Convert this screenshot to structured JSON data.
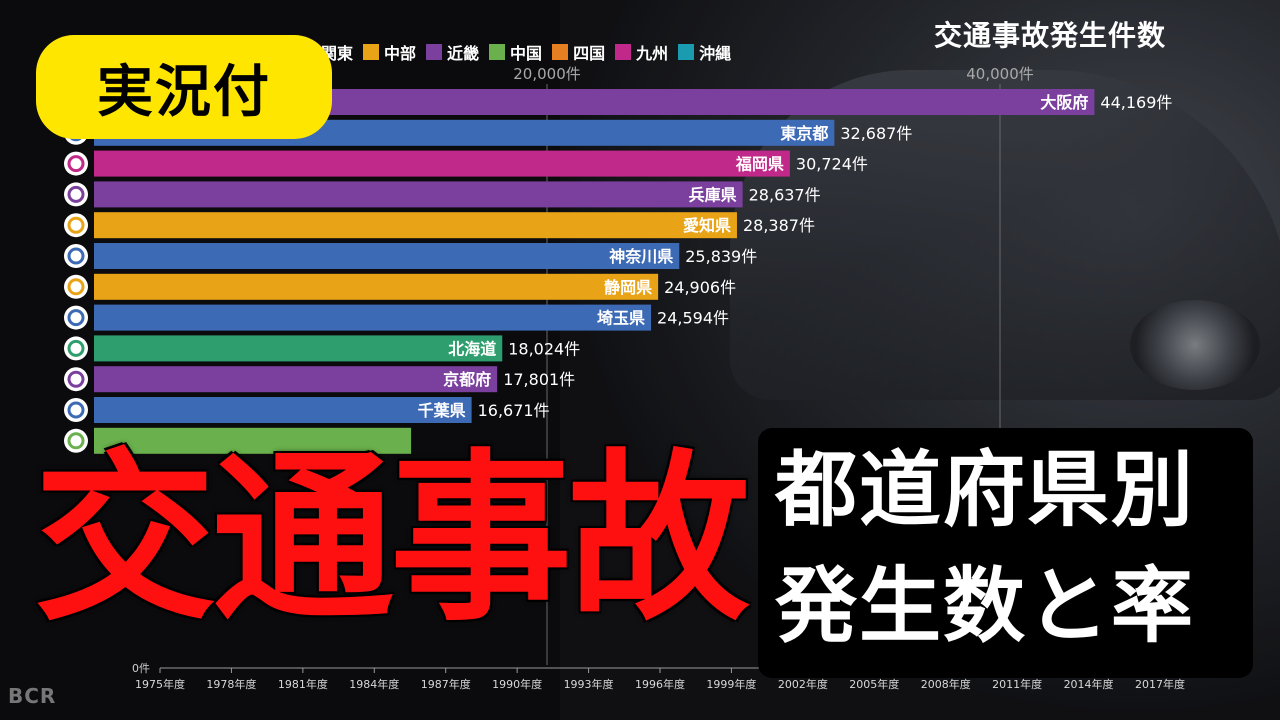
{
  "chart_data": {
    "type": "bar",
    "title": "交通事故発生件数",
    "legend": [
      {
        "name": "関東",
        "color": "#3d6ab5"
      },
      {
        "name": "中部",
        "color": "#e8a317"
      },
      {
        "name": "近畿",
        "color": "#7b3f9e"
      },
      {
        "name": "中国",
        "color": "#6ab04c"
      },
      {
        "name": "四国",
        "color": "#e67e22"
      },
      {
        "name": "九州",
        "color": "#c0288a"
      },
      {
        "name": "沖縄",
        "color": "#1a9bb0"
      }
    ],
    "x_ticks": [
      {
        "value": 20000,
        "label": "20,000件"
      },
      {
        "value": 40000,
        "label": "40,000件"
      }
    ],
    "xlim": [
      0,
      45000
    ],
    "bars": [
      {
        "label": "大阪府",
        "value": 44169,
        "value_label": "44,169件",
        "color": "#7b3f9e"
      },
      {
        "label": "東京都",
        "value": 32687,
        "value_label": "32,687件",
        "color": "#3d6ab5"
      },
      {
        "label": "福岡県",
        "value": 30724,
        "value_label": "30,724件",
        "color": "#c0288a"
      },
      {
        "label": "兵庫県",
        "value": 28637,
        "value_label": "28,637件",
        "color": "#7b3f9e"
      },
      {
        "label": "愛知県",
        "value": 28387,
        "value_label": "28,387件",
        "color": "#e8a317"
      },
      {
        "label": "神奈川県",
        "value": 25839,
        "value_label": "25,839件",
        "color": "#3d6ab5"
      },
      {
        "label": "静岡県",
        "value": 24906,
        "value_label": "24,906件",
        "color": "#e8a317"
      },
      {
        "label": "埼玉県",
        "value": 24594,
        "value_label": "24,594件",
        "color": "#3d6ab5"
      },
      {
        "label": "北海道",
        "value": 18024,
        "value_label": "18,024件",
        "color": "#2e9e6e"
      },
      {
        "label": "京都府",
        "value": 17801,
        "value_label": "17,801件",
        "color": "#7b3f9e"
      },
      {
        "label": "千葉県",
        "value": 16671,
        "value_label": "16,671件",
        "color": "#3d6ab5"
      },
      {
        "label": "",
        "value": 14000,
        "value_label": "",
        "color": "#6ab04c"
      }
    ],
    "timeline": {
      "zero_label": "0件",
      "years": [
        "1975年度",
        "1978年度",
        "1981年度",
        "1984年度",
        "1987年度",
        "1990年度",
        "1993年度",
        "1996年度",
        "1999年度",
        "2002年度",
        "2005年度",
        "2008年度",
        "2011年度",
        "2014年度",
        "2017年度"
      ]
    }
  },
  "overlay": {
    "badge": "実況付",
    "big_title": "交通事故",
    "subtitle_line1": "都道府県別",
    "subtitle_line2": "発生数と率",
    "watermark": "BCR"
  }
}
